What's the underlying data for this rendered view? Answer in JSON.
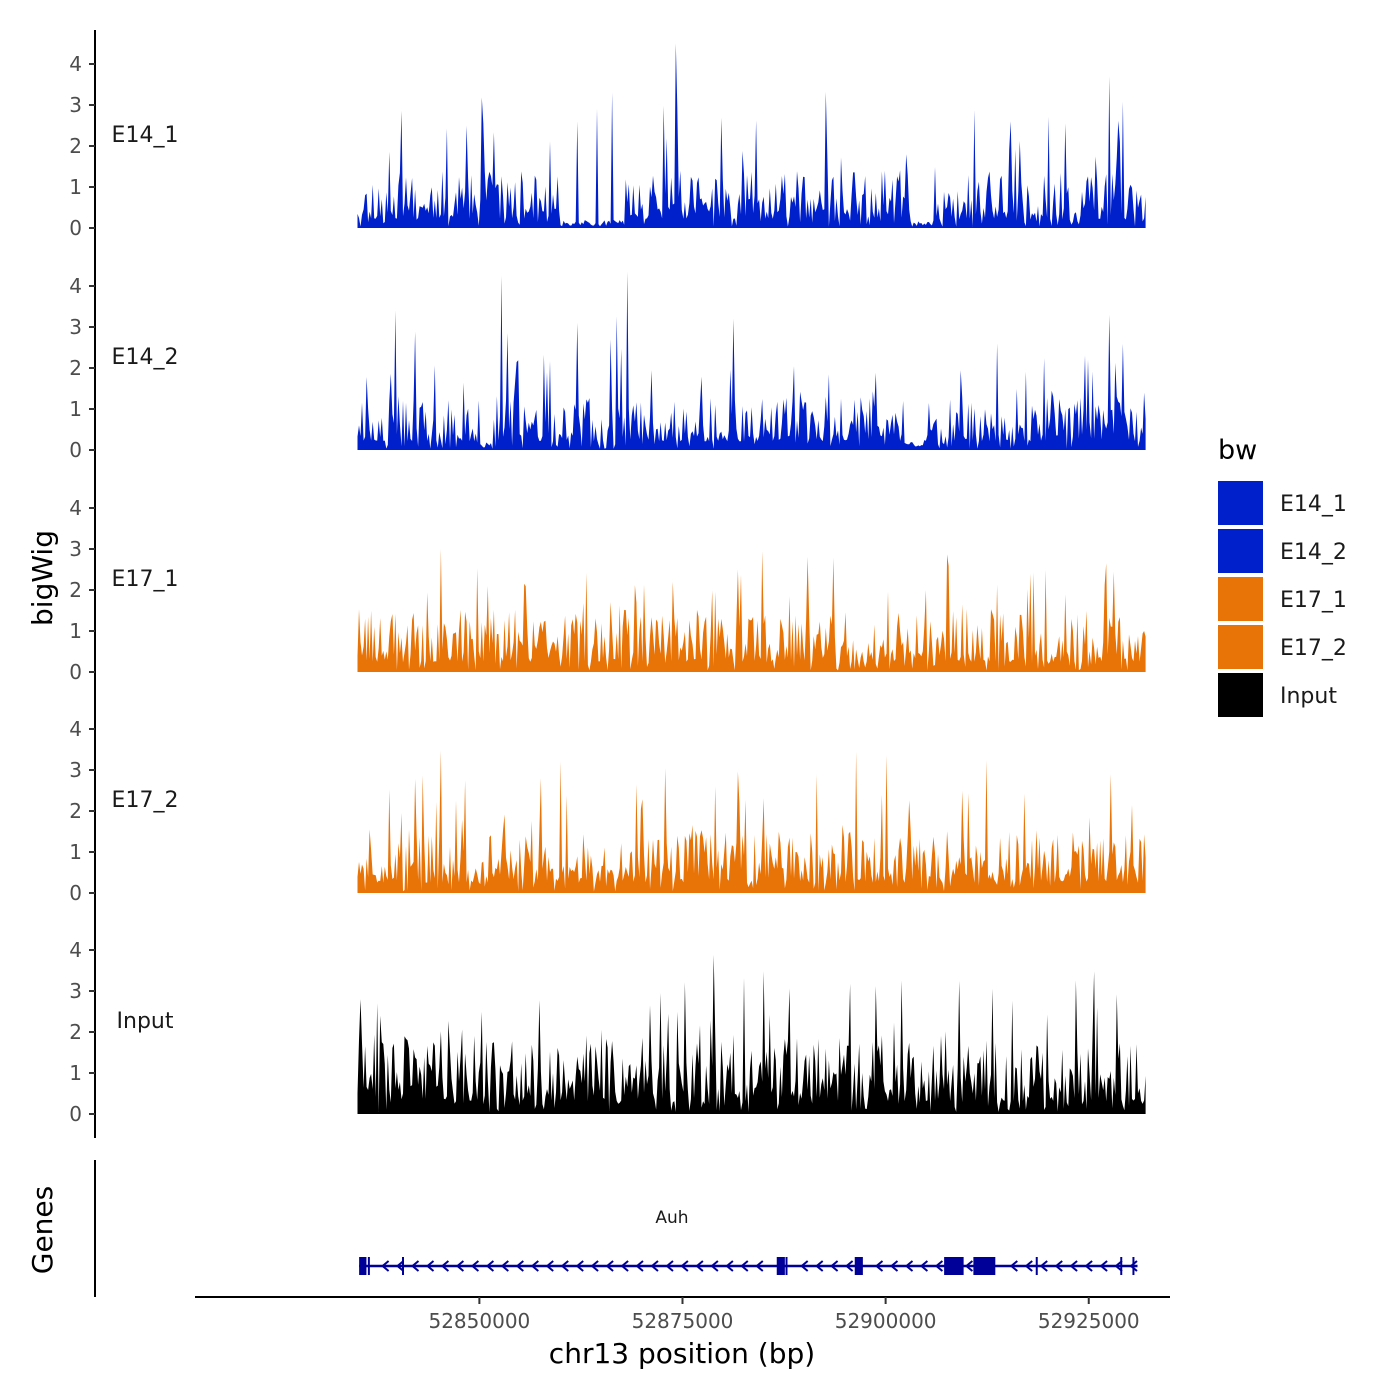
{
  "chart_data": {
    "type": "area",
    "ylabel": "bigWig",
    "xlabel": "chr13 position (bp)",
    "genes_label": "Genes",
    "xlim": [
      52815000,
      52935000
    ],
    "data_range": [
      52835000,
      52932000
    ],
    "ylim": [
      0,
      4.6
    ],
    "yticks": [
      "0",
      "1",
      "2",
      "3",
      "4"
    ],
    "xticks": [
      {
        "value": 52850000,
        "label": "52850000"
      },
      {
        "value": 52875000,
        "label": "52875000"
      },
      {
        "value": 52900000,
        "label": "52900000"
      },
      {
        "value": 52925000,
        "label": "52925000"
      }
    ],
    "series": [
      {
        "name": "E14_1",
        "label": "E14_1",
        "color": "#0020CC",
        "seed": 11,
        "base": 0.9,
        "gaps": [
          [
            52860000,
            52868000
          ],
          [
            52903000,
            52906000
          ]
        ],
        "peaks": [
          [
            52874200,
            4.5
          ],
          [
            52927500,
            3.7
          ],
          [
            52866300,
            3.3
          ],
          [
            52864500,
            2.9
          ],
          [
            52862000,
            2.6
          ],
          [
            52902500,
            1.8
          ]
        ]
      },
      {
        "name": "E14_2",
        "label": "E14_2",
        "color": "#0020CC",
        "seed": 23,
        "base": 0.85,
        "gaps": [
          [
            52850000,
            52851600
          ],
          [
            52902200,
            52904600
          ]
        ],
        "peaks": [
          [
            52868200,
            4.35
          ],
          [
            52852800,
            4.25
          ],
          [
            52927500,
            3.3
          ],
          [
            52866200,
            2.7
          ]
        ]
      },
      {
        "name": "E17_1",
        "label": "E17_1",
        "color": "#E87306",
        "seed": 37,
        "base": 1.0,
        "gaps": [],
        "peaks": [
          [
            52845200,
            3.0
          ],
          [
            52927200,
            2.65
          ],
          [
            52881800,
            2.5
          ],
          [
            52873800,
            2.2
          ]
        ]
      },
      {
        "name": "E17_2",
        "label": "E17_2",
        "color": "#E87306",
        "seed": 51,
        "base": 1.0,
        "gaps": [],
        "peaks": [
          [
            52896300,
            3.45
          ],
          [
            52927800,
            2.9
          ],
          [
            52848300,
            2.75
          ],
          [
            52869300,
            2.65
          ],
          [
            52879100,
            2.6
          ],
          [
            52857500,
            2.8
          ]
        ]
      },
      {
        "name": "Input",
        "label": "Input",
        "color": "#000000",
        "seed": 73,
        "base": 1.25,
        "gaps": [],
        "peaks": [
          [
            52872300,
            2.95
          ],
          [
            52835300,
            2.8
          ],
          [
            52871000,
            2.65
          ],
          [
            52926000,
            2.6
          ]
        ]
      }
    ],
    "legend": {
      "title": "bw",
      "entries": [
        {
          "label": "E14_1",
          "color": "#0020CC"
        },
        {
          "label": "E14_2",
          "color": "#0020CC"
        },
        {
          "label": "E17_1",
          "color": "#E87306"
        },
        {
          "label": "E17_2",
          "color": "#E87306"
        },
        {
          "label": "Input",
          "color": "#000000"
        }
      ]
    },
    "gene": {
      "name": "Auh",
      "color": "#000099",
      "strand": "-",
      "start": 52835200,
      "end": 52931000,
      "exons": [
        {
          "start": 52835200,
          "end": 52836100
        },
        {
          "start": 52886600,
          "end": 52887600
        },
        {
          "start": 52896200,
          "end": 52897200
        },
        {
          "start": 52907200,
          "end": 52909600
        },
        {
          "start": 52910800,
          "end": 52913500
        }
      ],
      "ticks": [
        52836400,
        52840600,
        52887800,
        52918600,
        52929000,
        52930500
      ]
    }
  }
}
